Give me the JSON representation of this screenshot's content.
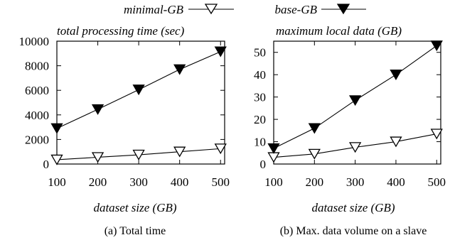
{
  "legend": {
    "entries": [
      {
        "label": "minimal-GB",
        "marker": "open-triangle-down"
      },
      {
        "label": "base-GB",
        "marker": "filled-triangle-down"
      }
    ],
    "placement": "top"
  },
  "chart_data": [
    {
      "type": "line",
      "panel_caption": "(a) Total time",
      "title": "total processing time (sec)",
      "xlabel": "dataset size (GB)",
      "ylabel": "",
      "x": [
        100,
        200,
        300,
        400,
        500
      ],
      "xticks": [
        100,
        200,
        300,
        400,
        500
      ],
      "xlim": [
        100,
        510
      ],
      "ylim": [
        0,
        10000
      ],
      "yticks": [
        0,
        2000,
        4000,
        6000,
        8000,
        10000
      ],
      "grid": false,
      "series": [
        {
          "name": "minimal-GB",
          "marker": "open-triangle-down",
          "values": [
            350,
            550,
            750,
            1000,
            1250
          ]
        },
        {
          "name": "base-GB",
          "marker": "filled-triangle-down",
          "values": [
            2900,
            4450,
            6050,
            7700,
            9150
          ]
        }
      ]
    },
    {
      "type": "line",
      "panel_caption": "(b) Max. data volume on a slave",
      "title": "maximum local data (GB)",
      "xlabel": "dataset size (GB)",
      "ylabel": "",
      "x": [
        100,
        200,
        300,
        400,
        500
      ],
      "xticks": [
        100,
        200,
        300,
        400,
        500
      ],
      "xlim": [
        100,
        510
      ],
      "ylim": [
        0,
        55
      ],
      "yticks": [
        0,
        10,
        20,
        30,
        40,
        50
      ],
      "grid": false,
      "series": [
        {
          "name": "minimal-GB",
          "marker": "open-triangle-down",
          "values": [
            3,
            4.5,
            7.5,
            10,
            13.5
          ]
        },
        {
          "name": "base-GB",
          "marker": "filled-triangle-down",
          "values": [
            7,
            16,
            28.5,
            40,
            53
          ]
        }
      ]
    }
  ]
}
